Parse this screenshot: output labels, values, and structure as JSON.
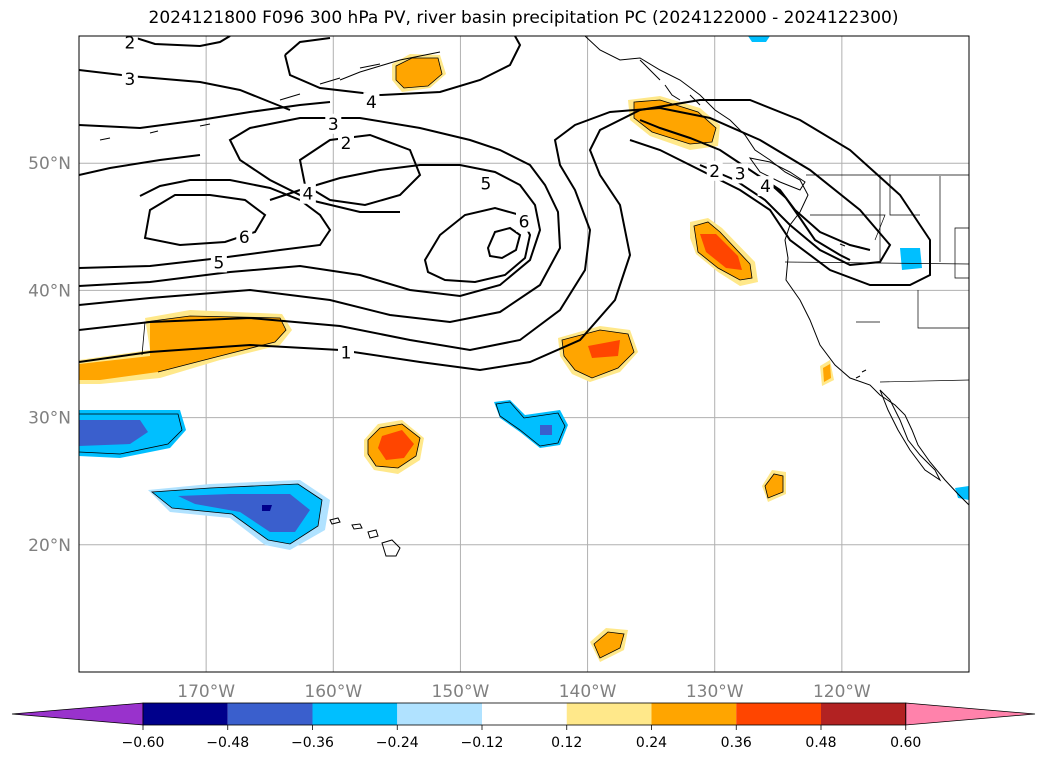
{
  "title": "2024121800 F096 300 hPa PV, river basin precipitation PC (2024122000 - 2024122300)",
  "map": {
    "lon_range": [
      -180,
      -110
    ],
    "lat_range": [
      10,
      60
    ],
    "lon_ticks": [
      {
        "value": -170,
        "label": "170°W"
      },
      {
        "value": -160,
        "label": "160°W"
      },
      {
        "value": -150,
        "label": "150°W"
      },
      {
        "value": -140,
        "label": "140°W"
      },
      {
        "value": -130,
        "label": "130°W"
      },
      {
        "value": -120,
        "label": "120°W"
      }
    ],
    "lat_ticks": [
      {
        "value": 50,
        "label": "50°N"
      },
      {
        "value": 40,
        "label": "40°N"
      },
      {
        "value": 30,
        "label": "30°N"
      },
      {
        "value": 20,
        "label": "20°N"
      }
    ],
    "grid": true,
    "grid_color": "#b0b0b0",
    "tick_label_color": "#808080"
  },
  "pv_contour_labels": [
    {
      "text": "2",
      "lon": -176,
      "lat": 59.5
    },
    {
      "text": "3",
      "lon": -176,
      "lat": 56.6
    },
    {
      "text": "4",
      "lon": -157,
      "lat": 54.8
    },
    {
      "text": "3",
      "lon": -160,
      "lat": 53.1
    },
    {
      "text": "2",
      "lon": -159,
      "lat": 51.6
    },
    {
      "text": "4",
      "lon": -162,
      "lat": 47.6
    },
    {
      "text": "6",
      "lon": -167,
      "lat": 44.2
    },
    {
      "text": "5",
      "lon": -169,
      "lat": 42.2
    },
    {
      "text": "5",
      "lon": -148,
      "lat": 48.4
    },
    {
      "text": "6",
      "lon": -145,
      "lat": 45.4
    },
    {
      "text": "1",
      "lon": -159,
      "lat": 35.1
    },
    {
      "text": "2",
      "lon": -130,
      "lat": 49.4
    },
    {
      "text": "3",
      "lon": -128,
      "lat": 49.2
    },
    {
      "text": "4",
      "lon": -126,
      "lat": 48.2
    }
  ],
  "colorbar": {
    "levels": [
      -0.6,
      -0.48,
      -0.36,
      -0.24,
      -0.12,
      0.12,
      0.24,
      0.36,
      0.48,
      0.6
    ],
    "labels": [
      "−0.60",
      "−0.48",
      "−0.36",
      "−0.24",
      "−0.12",
      "0.12",
      "0.24",
      "0.36",
      "0.48",
      "0.60"
    ],
    "colors": [
      "#9932cc",
      "#00008b",
      "#3a5fcd",
      "#00bfff",
      "#b0e2ff",
      "#ffffff",
      "#ffe88a",
      "#ffa500",
      "#ff4500",
      "#b22222",
      "#ff82ab"
    ]
  }
}
